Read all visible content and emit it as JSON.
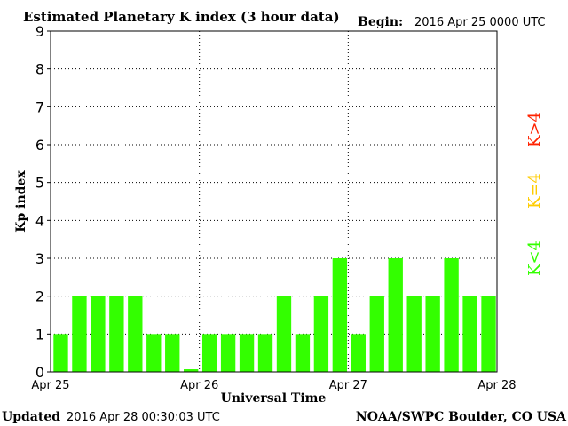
{
  "header": {
    "title": "Estimated Planetary K index (3 hour data)",
    "begin_label": "Begin:",
    "begin_value": "2016 Apr 25 0000 UTC"
  },
  "footer": {
    "updated_label": "Updated",
    "updated_value": "2016 Apr 28 00:30:03 UTC",
    "source": "NOAA/SWPC Boulder, CO USA"
  },
  "legend": {
    "above": "K>4",
    "equal": "K=4",
    "below": "K<4"
  },
  "colors": {
    "below_4": "#33ff00",
    "equal_4": "#ffcc00",
    "above_4": "#ff2200",
    "axis": "#000000",
    "grid": "#000000"
  },
  "chart_data": {
    "type": "bar",
    "title": "Estimated Planetary K index (3 hour data)",
    "xlabel": "Universal Time",
    "ylabel": "Kp index",
    "ylim": [
      0,
      9
    ],
    "yticks": [
      "0",
      "1",
      "2",
      "3",
      "4",
      "5",
      "6",
      "7",
      "8",
      "9"
    ],
    "xticks": [
      "Apr 25",
      "Apr 26",
      "Apr 27",
      "Apr 28"
    ],
    "grid": true,
    "values": [
      1,
      2,
      2,
      2,
      2,
      1,
      1,
      0.07,
      1,
      1,
      1,
      1,
      2,
      1,
      2,
      3,
      1,
      2,
      3,
      2,
      2,
      3,
      2,
      2
    ]
  }
}
